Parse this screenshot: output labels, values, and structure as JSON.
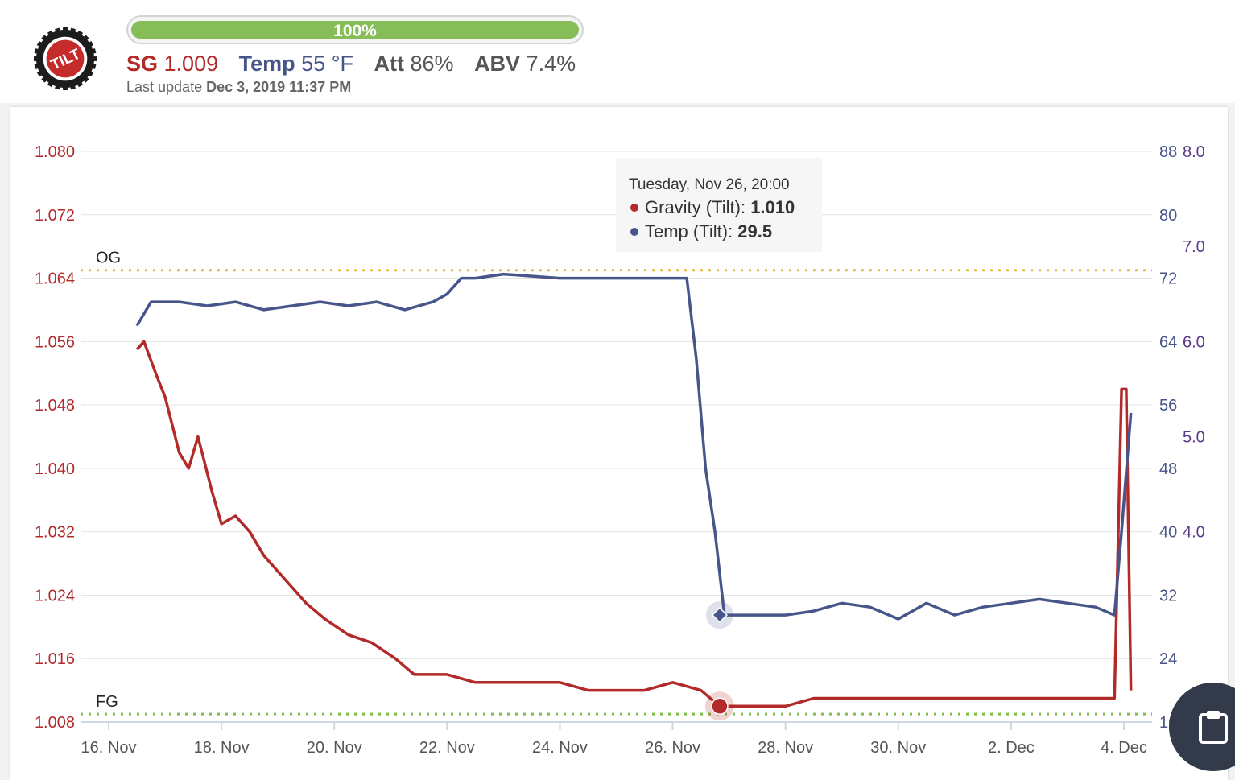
{
  "header": {
    "progress": {
      "label": "100%",
      "fraction": 1.0,
      "color": "#86bd59"
    },
    "stats": [
      {
        "name": "SG",
        "value": "1.009",
        "color": "#b22a2a"
      },
      {
        "name": "Temp",
        "value": "55 °F",
        "color": "#48558a"
      },
      {
        "name": "Att",
        "value": "86%",
        "color": "#555555"
      },
      {
        "name": "ABV",
        "value": "7.4%",
        "color": "#555555"
      }
    ],
    "last_update_label": "Last update",
    "last_update_value": "Dec 3, 2019 11:37 PM",
    "logo_text": "TILT"
  },
  "tooltip": {
    "title": "Tuesday, Nov 26, 20:00",
    "rows": [
      {
        "name": "Gravity (Tilt)",
        "value": "1.010",
        "color": "#b22a2a"
      },
      {
        "name": "Temp (Tilt)",
        "value": "29.5",
        "color": "#48558a"
      }
    ]
  },
  "clipboard_icon": "clipboard-icon",
  "chart_data": {
    "type": "line",
    "x_ticks": [
      "16. Nov",
      "18. Nov",
      "20. Nov",
      "22. Nov",
      "24. Nov",
      "26. Nov",
      "28. Nov",
      "30. Nov",
      "2. Dec",
      "4. Dec"
    ],
    "xlim": [
      "2019-11-15T12:00",
      "2019-12-04T12:00"
    ],
    "y_left": {
      "ticks": [
        "1.080",
        "1.072",
        "1.064",
        "1.056",
        "1.048",
        "1.040",
        "1.032",
        "1.024",
        "1.016",
        "1.008"
      ],
      "range": [
        1.008,
        1.08
      ],
      "color": "#b22a2a"
    },
    "y_right": {
      "ticks": [
        "88",
        "80",
        "72",
        "64",
        "56",
        "48",
        "40",
        "32",
        "24",
        "16"
      ],
      "range": [
        16,
        88
      ],
      "color": "#48558a"
    },
    "y_right2": {
      "ticks": [
        "8.0",
        "7.0",
        "6.0",
        "5.0",
        "4.0"
      ],
      "range": [
        2.0,
        8.0
      ],
      "color": "#5b3a8a"
    },
    "reference_lines": [
      {
        "label": "OG",
        "value": 1.065,
        "color": "#e0c040"
      },
      {
        "label": "FG",
        "value": 1.009,
        "color": "#7ac142"
      }
    ],
    "series": [
      {
        "name": "Gravity (Tilt)",
        "axis": "left",
        "color": "#b22a2a",
        "points": [
          [
            "2019-11-16T12:00",
            1.055
          ],
          [
            "2019-11-16T15:00",
            1.056
          ],
          [
            "2019-11-16T20:00",
            1.052
          ],
          [
            "2019-11-17T00:00",
            1.049
          ],
          [
            "2019-11-17T06:00",
            1.042
          ],
          [
            "2019-11-17T10:00",
            1.04
          ],
          [
            "2019-11-17T14:00",
            1.044
          ],
          [
            "2019-11-17T20:00",
            1.037
          ],
          [
            "2019-11-18T00:00",
            1.033
          ],
          [
            "2019-11-18T06:00",
            1.034
          ],
          [
            "2019-11-18T12:00",
            1.032
          ],
          [
            "2019-11-18T18:00",
            1.029
          ],
          [
            "2019-11-19T00:00",
            1.027
          ],
          [
            "2019-11-19T06:00",
            1.025
          ],
          [
            "2019-11-19T12:00",
            1.023
          ],
          [
            "2019-11-19T20:00",
            1.021
          ],
          [
            "2019-11-20T06:00",
            1.019
          ],
          [
            "2019-11-20T16:00",
            1.018
          ],
          [
            "2019-11-21T02:00",
            1.016
          ],
          [
            "2019-11-21T10:00",
            1.014
          ],
          [
            "2019-11-22T00:00",
            1.014
          ],
          [
            "2019-11-22T12:00",
            1.013
          ],
          [
            "2019-11-23T00:00",
            1.013
          ],
          [
            "2019-11-23T12:00",
            1.013
          ],
          [
            "2019-11-24T00:00",
            1.013
          ],
          [
            "2019-11-24T12:00",
            1.012
          ],
          [
            "2019-11-25T00:00",
            1.012
          ],
          [
            "2019-11-25T12:00",
            1.012
          ],
          [
            "2019-11-26T00:00",
            1.013
          ],
          [
            "2019-11-26T12:00",
            1.012
          ],
          [
            "2019-11-26T20:00",
            1.01
          ],
          [
            "2019-11-27T12:00",
            1.01
          ],
          [
            "2019-11-28T00:00",
            1.01
          ],
          [
            "2019-11-28T12:00",
            1.011
          ],
          [
            "2019-11-29T12:00",
            1.011
          ],
          [
            "2019-11-30T12:00",
            1.011
          ],
          [
            "2019-12-01T12:00",
            1.011
          ],
          [
            "2019-12-02T12:00",
            1.011
          ],
          [
            "2019-12-03T12:00",
            1.011
          ],
          [
            "2019-12-03T20:00",
            1.011
          ],
          [
            "2019-12-03T23:00",
            1.05
          ],
          [
            "2019-12-04T01:00",
            1.05
          ],
          [
            "2019-12-04T03:00",
            1.012
          ]
        ]
      },
      {
        "name": "Temp (Tilt)",
        "axis": "right",
        "color": "#48558a",
        "points": [
          [
            "2019-11-16T12:00",
            66.0
          ],
          [
            "2019-11-16T18:00",
            69.0
          ],
          [
            "2019-11-17T06:00",
            69.0
          ],
          [
            "2019-11-17T18:00",
            68.5
          ],
          [
            "2019-11-18T06:00",
            69.0
          ],
          [
            "2019-11-18T18:00",
            68.0
          ],
          [
            "2019-11-19T06:00",
            68.5
          ],
          [
            "2019-11-19T18:00",
            69.0
          ],
          [
            "2019-11-20T06:00",
            68.5
          ],
          [
            "2019-11-20T18:00",
            69.0
          ],
          [
            "2019-11-21T06:00",
            68.0
          ],
          [
            "2019-11-21T18:00",
            69.0
          ],
          [
            "2019-11-22T00:00",
            70.0
          ],
          [
            "2019-11-22T06:00",
            72.0
          ],
          [
            "2019-11-22T12:00",
            72.0
          ],
          [
            "2019-11-23T00:00",
            72.5
          ],
          [
            "2019-11-24T00:00",
            72.0
          ],
          [
            "2019-11-25T00:00",
            72.0
          ],
          [
            "2019-11-26T00:00",
            72.0
          ],
          [
            "2019-11-26T06:00",
            72.0
          ],
          [
            "2019-11-26T10:00",
            62.0
          ],
          [
            "2019-11-26T14:00",
            48.0
          ],
          [
            "2019-11-26T18:00",
            40.0
          ],
          [
            "2019-11-26T22:00",
            29.5
          ],
          [
            "2019-11-27T12:00",
            29.5
          ],
          [
            "2019-11-28T00:00",
            29.5
          ],
          [
            "2019-11-28T12:00",
            30.0
          ],
          [
            "2019-11-29T00:00",
            31.0
          ],
          [
            "2019-11-29T12:00",
            30.5
          ],
          [
            "2019-11-30T00:00",
            29.0
          ],
          [
            "2019-11-30T12:00",
            31.0
          ],
          [
            "2019-12-01T00:00",
            29.5
          ],
          [
            "2019-12-01T12:00",
            30.5
          ],
          [
            "2019-12-02T00:00",
            31.0
          ],
          [
            "2019-12-02T12:00",
            31.5
          ],
          [
            "2019-12-03T00:00",
            31.0
          ],
          [
            "2019-12-03T12:00",
            30.5
          ],
          [
            "2019-12-03T20:00",
            29.5
          ],
          [
            "2019-12-03T23:00",
            40.0
          ],
          [
            "2019-12-04T03:00",
            55.0
          ]
        ]
      }
    ],
    "tooltip_point": {
      "x": "2019-11-26T20:00",
      "gravity": 1.01,
      "temp": 29.5
    },
    "grid": true,
    "legend": "none"
  }
}
